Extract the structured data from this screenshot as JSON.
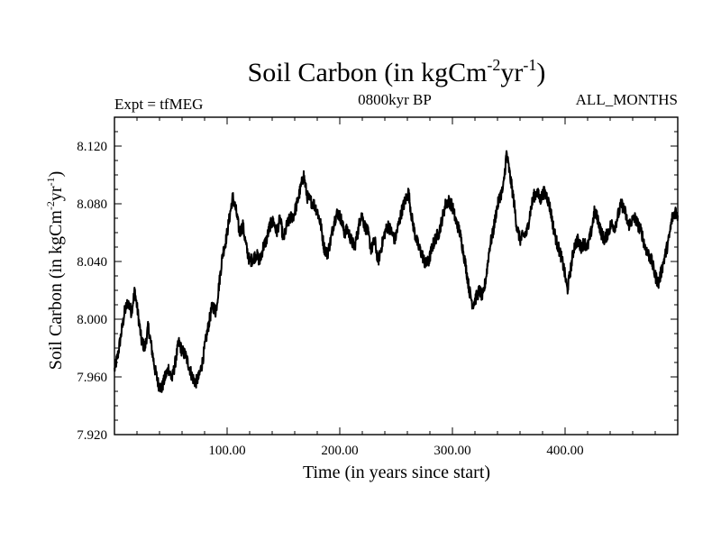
{
  "chart_data": {
    "type": "line",
    "title": "Soil Carbon (in kgCm",
    "title_sup1": "-2",
    "title_mid": "yr",
    "title_sup2": "-1",
    "title_end": ")",
    "subtitle_left": "Expt = tfMEG",
    "subtitle_center": "0800kyr BP",
    "subtitle_right": "ALL_MONTHS",
    "xlabel": "Time (in years since start)",
    "ylabel": "Soil Carbon (in kgCm",
    "ylabel_sup1": "-2",
    "ylabel_mid": "yr",
    "ylabel_sup2": "-1",
    "ylabel_end": ")",
    "xlim": [
      0,
      500
    ],
    "ylim": [
      7.92,
      8.14
    ],
    "x_ticks": [
      100,
      200,
      300,
      400
    ],
    "x_tick_labels": [
      "100.00",
      "200.00",
      "300.00",
      "400.00"
    ],
    "y_ticks": [
      7.92,
      7.96,
      8.0,
      8.04,
      8.08,
      8.12
    ],
    "y_tick_labels": [
      "7.920",
      "7.960",
      "8.000",
      "8.040",
      "8.080",
      "8.120"
    ],
    "grid": false,
    "line_color": "#000000",
    "series": [
      {
        "name": "Soil Carbon",
        "anchors": [
          [
            0,
            7.965
          ],
          [
            3,
            7.975
          ],
          [
            6,
            7.99
          ],
          [
            9,
            8.005
          ],
          [
            12,
            8.012
          ],
          [
            15,
            8.005
          ],
          [
            18,
            8.02
          ],
          [
            21,
            8.003
          ],
          [
            24,
            7.985
          ],
          [
            27,
            7.98
          ],
          [
            30,
            7.995
          ],
          [
            33,
            7.98
          ],
          [
            36,
            7.965
          ],
          [
            39,
            7.955
          ],
          [
            42,
            7.952
          ],
          [
            45,
            7.96
          ],
          [
            48,
            7.966
          ],
          [
            51,
            7.958
          ],
          [
            54,
            7.97
          ],
          [
            57,
            7.984
          ],
          [
            60,
            7.978
          ],
          [
            63,
            7.975
          ],
          [
            66,
            7.968
          ],
          [
            69,
            7.96
          ],
          [
            72,
            7.956
          ],
          [
            75,
            7.96
          ],
          [
            78,
            7.97
          ],
          [
            81,
            7.985
          ],
          [
            84,
            7.998
          ],
          [
            87,
            8.01
          ],
          [
            90,
            8.005
          ],
          [
            93,
            8.025
          ],
          [
            96,
            8.045
          ],
          [
            99,
            8.055
          ],
          [
            102,
            8.07
          ],
          [
            105,
            8.085
          ],
          [
            108,
            8.075
          ],
          [
            111,
            8.06
          ],
          [
            114,
            8.065
          ],
          [
            117,
            8.05
          ],
          [
            120,
            8.04
          ],
          [
            123,
            8.042
          ],
          [
            126,
            8.045
          ],
          [
            129,
            8.04
          ],
          [
            132,
            8.05
          ],
          [
            135,
            8.055
          ],
          [
            138,
            8.065
          ],
          [
            141,
            8.068
          ],
          [
            144,
            8.06
          ],
          [
            147,
            8.07
          ],
          [
            150,
            8.055
          ],
          [
            153,
            8.065
          ],
          [
            156,
            8.07
          ],
          [
            159,
            8.072
          ],
          [
            162,
            8.08
          ],
          [
            165,
            8.09
          ],
          [
            168,
            8.1
          ],
          [
            171,
            8.085
          ],
          [
            174,
            8.082
          ],
          [
            177,
            8.08
          ],
          [
            180,
            8.075
          ],
          [
            183,
            8.066
          ],
          [
            186,
            8.05
          ],
          [
            189,
            8.045
          ],
          [
            192,
            8.055
          ],
          [
            195,
            8.068
          ],
          [
            198,
            8.074
          ],
          [
            201,
            8.07
          ],
          [
            204,
            8.06
          ],
          [
            207,
            8.062
          ],
          [
            210,
            8.055
          ],
          [
            213,
            8.05
          ],
          [
            216,
            8.06
          ],
          [
            219,
            8.074
          ],
          [
            222,
            8.065
          ],
          [
            225,
            8.06
          ],
          [
            228,
            8.048
          ],
          [
            231,
            8.055
          ],
          [
            234,
            8.04
          ],
          [
            237,
            8.05
          ],
          [
            240,
            8.06
          ],
          [
            243,
            8.065
          ],
          [
            246,
            8.06
          ],
          [
            249,
            8.055
          ],
          [
            252,
            8.065
          ],
          [
            255,
            8.075
          ],
          [
            258,
            8.082
          ],
          [
            261,
            8.088
          ],
          [
            264,
            8.07
          ],
          [
            267,
            8.058
          ],
          [
            270,
            8.05
          ],
          [
            273,
            8.045
          ],
          [
            276,
            8.038
          ],
          [
            279,
            8.04
          ],
          [
            282,
            8.05
          ],
          [
            285,
            8.056
          ],
          [
            288,
            8.06
          ],
          [
            291,
            8.07
          ],
          [
            294,
            8.08
          ],
          [
            297,
            8.082
          ],
          [
            300,
            8.078
          ],
          [
            303,
            8.068
          ],
          [
            306,
            8.062
          ],
          [
            309,
            8.05
          ],
          [
            312,
            8.036
          ],
          [
            315,
            8.02
          ],
          [
            318,
            8.01
          ],
          [
            321,
            8.015
          ],
          [
            324,
            8.02
          ],
          [
            327,
            8.015
          ],
          [
            330,
            8.03
          ],
          [
            333,
            8.05
          ],
          [
            336,
            8.06
          ],
          [
            339,
            8.075
          ],
          [
            342,
            8.085
          ],
          [
            345,
            8.09
          ],
          [
            348,
            8.115
          ],
          [
            351,
            8.1
          ],
          [
            354,
            8.085
          ],
          [
            357,
            8.065
          ],
          [
            360,
            8.055
          ],
          [
            363,
            8.058
          ],
          [
            366,
            8.06
          ],
          [
            369,
            8.074
          ],
          [
            372,
            8.085
          ],
          [
            375,
            8.088
          ],
          [
            378,
            8.083
          ],
          [
            381,
            8.088
          ],
          [
            384,
            8.085
          ],
          [
            387,
            8.076
          ],
          [
            390,
            8.062
          ],
          [
            393,
            8.052
          ],
          [
            396,
            8.045
          ],
          [
            399,
            8.035
          ],
          [
            402,
            8.02
          ],
          [
            405,
            8.035
          ],
          [
            408,
            8.05
          ],
          [
            411,
            8.055
          ],
          [
            414,
            8.05
          ],
          [
            417,
            8.053
          ],
          [
            420,
            8.05
          ],
          [
            423,
            8.06
          ],
          [
            426,
            8.074
          ],
          [
            429,
            8.07
          ],
          [
            432,
            8.06
          ],
          [
            435,
            8.055
          ],
          [
            438,
            8.06
          ],
          [
            441,
            8.066
          ],
          [
            444,
            8.064
          ],
          [
            447,
            8.072
          ],
          [
            450,
            8.08
          ],
          [
            453,
            8.075
          ],
          [
            456,
            8.065
          ],
          [
            459,
            8.068
          ],
          [
            462,
            8.07
          ],
          [
            465,
            8.065
          ],
          [
            468,
            8.06
          ],
          [
            471,
            8.05
          ],
          [
            474,
            8.045
          ],
          [
            477,
            8.04
          ],
          [
            480,
            8.03
          ],
          [
            483,
            8.025
          ],
          [
            486,
            8.035
          ],
          [
            489,
            8.045
          ],
          [
            492,
            8.055
          ],
          [
            495,
            8.07
          ],
          [
            498,
            8.075
          ],
          [
            500,
            8.072
          ]
        ]
      }
    ]
  }
}
